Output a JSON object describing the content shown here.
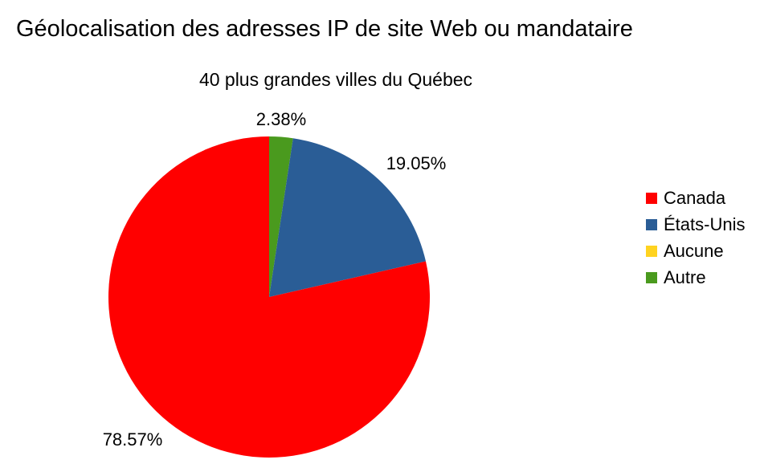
{
  "title": "Géolocalisation des adresses IP de site Web ou mandataire",
  "subtitle": "40 plus grandes villes du Québec",
  "chart_data": {
    "type": "pie",
    "title": "Géolocalisation des adresses IP de site Web ou mandataire",
    "subtitle": "40 plus grandes villes du Québec",
    "categories": [
      "Canada",
      "États-Unis",
      "Aucune",
      "Autre"
    ],
    "values": [
      78.57,
      19.05,
      0,
      2.38
    ],
    "labels": [
      "78.57%",
      "19.05%",
      "",
      "2.38%"
    ],
    "colors": [
      "#ff0000",
      "#2a5d96",
      "#ffd320",
      "#4a9a1e"
    ],
    "legend_position": "right"
  }
}
